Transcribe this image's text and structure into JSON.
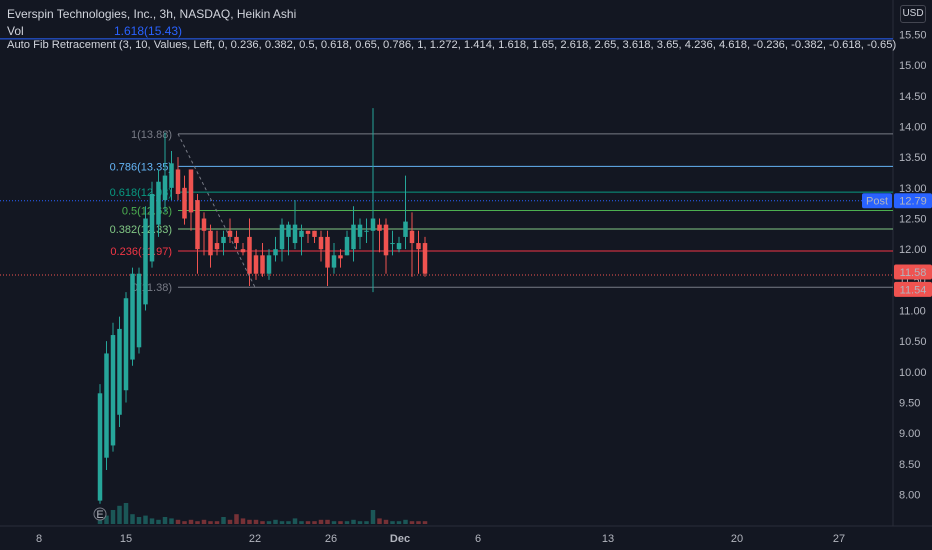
{
  "header": {
    "title": "Everspin Technologies, Inc., 3h, NASDAQ, Heikin Ashi",
    "vol_label": "Vol",
    "vol_fib_value": "1.618(15.43)",
    "indicator": "Auto Fib Retracement (3, 10, Values, Left, 0, 0.236, 0.382, 0.5, 0.618, 0.65, 0.786, 1, 1.272, 1.414, 1.618, 1.65, 2.618, 2.65, 3.618, 3.65, 4.236, 4.618, -0.236, -0.382, -0.618, -0.65)"
  },
  "currency_label": "USD",
  "colors": {
    "background": "#131722",
    "up": "#26a69a",
    "down": "#ef5350",
    "grid": "#1e222d",
    "accent": "#2962ff"
  },
  "chart_data": {
    "type": "candlestick",
    "style": "Heikin Ashi",
    "timeframe": "3h",
    "ylim": [
      7.7,
      16.0
    ],
    "y_ticks": [
      8.0,
      8.5,
      9.0,
      9.5,
      10.0,
      10.5,
      11.0,
      11.5,
      12.0,
      12.5,
      13.0,
      13.5,
      14.0,
      14.5,
      15.0,
      15.5
    ],
    "x_ticks": [
      "8",
      "15",
      "22",
      "26",
      "Dec",
      "6",
      "13",
      "20",
      "27"
    ],
    "x_tick_bold": [
      "Dec"
    ],
    "grid": false,
    "fib_levels": [
      {
        "label": "1(13.88)",
        "value": 13.88,
        "color": "#787b86"
      },
      {
        "label": "0.786(13.35)",
        "value": 13.35,
        "color": "#64b5f6"
      },
      {
        "label": "0.618(12.93)",
        "value": 12.93,
        "color": "#089981"
      },
      {
        "label": "0.5(12.63)",
        "value": 12.63,
        "color": "#4caf50"
      },
      {
        "label": "0.382(12.33)",
        "value": 12.33,
        "color": "#81c784"
      },
      {
        "label": "0.236(11.97)",
        "value": 11.97,
        "color": "#f23645"
      },
      {
        "label": "0(11.38)",
        "value": 11.38,
        "color": "#787b86"
      }
    ],
    "fib_extension": {
      "label": "1.618(15.43)",
      "value": 15.43,
      "color": "#2962ff"
    },
    "price_labels": [
      {
        "text": "Post",
        "value": 12.79,
        "color": "#2962ff"
      },
      {
        "text": "12.79",
        "value": 12.79,
        "color": "#2962ff"
      },
      {
        "text": "11.58",
        "value": 11.58,
        "color": "#ef5350"
      },
      {
        "text": "11.54",
        "value": 11.54,
        "color": "#ef5350"
      }
    ],
    "candles": [
      {
        "o": 7.9,
        "h": 9.8,
        "l": 7.85,
        "c": 9.65
      },
      {
        "o": 8.6,
        "h": 10.5,
        "l": 8.4,
        "c": 10.3
      },
      {
        "o": 8.8,
        "h": 10.8,
        "l": 8.7,
        "c": 10.6
      },
      {
        "o": 9.3,
        "h": 10.9,
        "l": 9.1,
        "c": 10.7
      },
      {
        "o": 9.7,
        "h": 11.3,
        "l": 9.5,
        "c": 11.2
      },
      {
        "o": 10.2,
        "h": 11.7,
        "l": 10.1,
        "c": 11.6
      },
      {
        "o": 10.4,
        "h": 11.7,
        "l": 10.3,
        "c": 11.6
      },
      {
        "o": 11.1,
        "h": 12.7,
        "l": 11.0,
        "c": 12.5
      },
      {
        "o": 11.8,
        "h": 13.1,
        "l": 11.7,
        "c": 12.9
      },
      {
        "o": 12.4,
        "h": 13.3,
        "l": 12.2,
        "c": 13.1
      },
      {
        "o": 12.8,
        "h": 13.9,
        "l": 12.6,
        "c": 13.2
      },
      {
        "o": 13.0,
        "h": 13.6,
        "l": 12.8,
        "c": 13.4
      },
      {
        "o": 13.3,
        "h": 13.5,
        "l": 12.8,
        "c": 12.9
      },
      {
        "o": 13.0,
        "h": 13.2,
        "l": 12.4,
        "c": 12.5
      },
      {
        "o": 13.3,
        "h": 13.3,
        "l": 12.3,
        "c": 12.6
      },
      {
        "o": 12.8,
        "h": 12.9,
        "l": 11.6,
        "c": 12.0
      },
      {
        "o": 12.5,
        "h": 12.6,
        "l": 11.9,
        "c": 12.3
      },
      {
        "o": 12.3,
        "h": 12.4,
        "l": 11.7,
        "c": 11.9
      },
      {
        "o": 12.1,
        "h": 12.3,
        "l": 11.9,
        "c": 12.0
      },
      {
        "o": 12.1,
        "h": 12.3,
        "l": 11.9,
        "c": 12.2
      },
      {
        "o": 12.3,
        "h": 12.5,
        "l": 12.1,
        "c": 12.2
      },
      {
        "o": 12.2,
        "h": 12.3,
        "l": 12.0,
        "c": 12.1
      },
      {
        "o": 12.0,
        "h": 12.1,
        "l": 11.9,
        "c": 11.95
      },
      {
        "o": 12.2,
        "h": 12.5,
        "l": 11.4,
        "c": 11.6
      },
      {
        "o": 11.9,
        "h": 12.0,
        "l": 11.5,
        "c": 11.6
      },
      {
        "o": 11.9,
        "h": 12.1,
        "l": 11.55,
        "c": 11.6
      },
      {
        "o": 11.6,
        "h": 12.0,
        "l": 11.5,
        "c": 11.9
      },
      {
        "o": 11.9,
        "h": 12.2,
        "l": 11.8,
        "c": 12.0
      },
      {
        "o": 12.0,
        "h": 12.5,
        "l": 11.8,
        "c": 12.4
      },
      {
        "o": 12.2,
        "h": 12.45,
        "l": 11.9,
        "c": 12.4
      },
      {
        "o": 12.1,
        "h": 12.8,
        "l": 12.0,
        "c": 12.4
      },
      {
        "o": 12.2,
        "h": 12.4,
        "l": 11.9,
        "c": 12.3
      },
      {
        "o": 12.3,
        "h": 12.3,
        "l": 12.1,
        "c": 12.25
      },
      {
        "o": 12.3,
        "h": 12.3,
        "l": 12.1,
        "c": 12.2
      },
      {
        "o": 12.2,
        "h": 12.3,
        "l": 11.8,
        "c": 12.0
      },
      {
        "o": 12.2,
        "h": 12.3,
        "l": 11.4,
        "c": 11.7
      },
      {
        "o": 11.7,
        "h": 12.1,
        "l": 11.6,
        "c": 11.9
      },
      {
        "o": 11.9,
        "h": 12.0,
        "l": 11.7,
        "c": 11.85
      },
      {
        "o": 11.9,
        "h": 12.3,
        "l": 11.9,
        "c": 12.2
      },
      {
        "o": 12.0,
        "h": 12.7,
        "l": 11.8,
        "c": 12.4
      },
      {
        "o": 12.2,
        "h": 12.5,
        "l": 12.0,
        "c": 12.4
      },
      {
        "o": 12.3,
        "h": 12.5,
        "l": 12.1,
        "c": 12.3
      },
      {
        "o": 12.3,
        "h": 14.3,
        "l": 11.3,
        "c": 12.5
      },
      {
        "o": 12.4,
        "h": 12.5,
        "l": 11.95,
        "c": 12.3
      },
      {
        "o": 12.4,
        "h": 12.5,
        "l": 11.6,
        "c": 11.9
      },
      {
        "o": 12.1,
        "h": 12.3,
        "l": 11.9,
        "c": 12.1
      },
      {
        "o": 12.0,
        "h": 12.2,
        "l": 11.95,
        "c": 12.1
      },
      {
        "o": 12.2,
        "h": 13.2,
        "l": 12.0,
        "c": 12.45
      },
      {
        "o": 12.3,
        "h": 12.6,
        "l": 11.55,
        "c": 12.1
      },
      {
        "o": 12.1,
        "h": 12.3,
        "l": 11.6,
        "c": 12.0
      },
      {
        "o": 12.1,
        "h": 12.2,
        "l": 11.55,
        "c": 11.6
      }
    ],
    "volume": [
      0.9,
      0.6,
      1.0,
      1.3,
      1.5,
      0.7,
      0.5,
      0.6,
      0.4,
      0.3,
      0.5,
      0.4,
      0.3,
      0.2,
      0.3,
      0.2,
      0.3,
      0.2,
      0.2,
      0.5,
      0.3,
      0.7,
      0.4,
      0.3,
      0.3,
      0.2,
      0.2,
      0.3,
      0.2,
      0.2,
      0.4,
      0.2,
      0.2,
      0.2,
      0.3,
      0.3,
      0.2,
      0.2,
      0.2,
      0.3,
      0.2,
      0.2,
      1.0,
      0.4,
      0.3,
      0.2,
      0.2,
      0.3,
      0.2,
      0.2,
      0.2
    ],
    "earnings_marker": "E"
  }
}
